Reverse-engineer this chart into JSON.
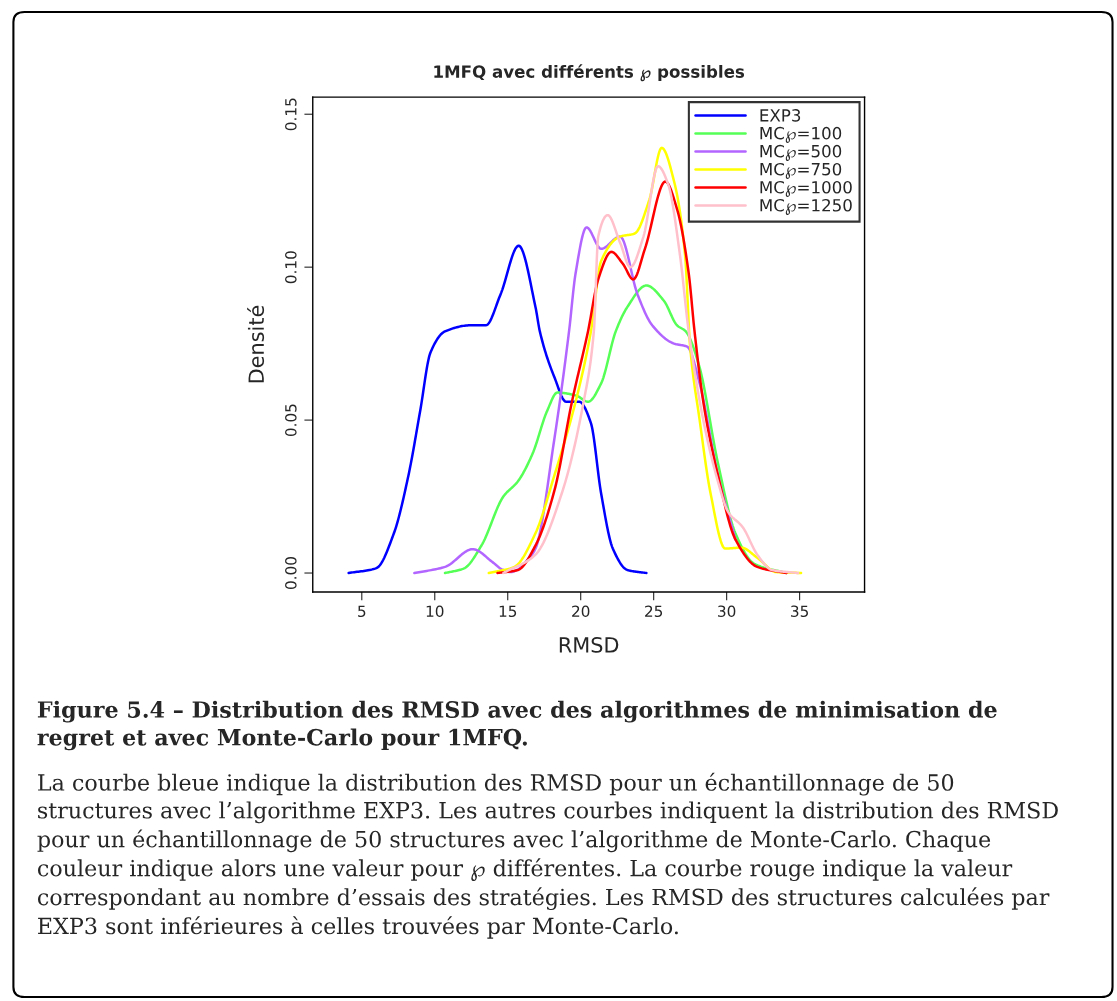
{
  "chart_data": {
    "type": "line",
    "title": "1MFQ avec différents ℘ possibles",
    "xlabel": "RMSD",
    "ylabel": "Densité",
    "xlim": [
      1.64,
      39.45
    ],
    "xticks": [
      5,
      10,
      15,
      20,
      25,
      30,
      35
    ],
    "ylim": [
      -0.0062,
      0.1556
    ],
    "yticks": [
      {
        "value": 0,
        "label": "0.00"
      },
      {
        "value": 0.05,
        "label": "0.05"
      },
      {
        "value": 0.1,
        "label": "0.10"
      },
      {
        "value": 0.15,
        "label": "0.15"
      }
    ],
    "grid": false,
    "legend": "top right",
    "marker": "none",
    "line_style": "solid",
    "series": [
      {
        "name": "EXP3",
        "color": "#0000ff",
        "x": [
          4.1,
          6.0,
          7.2,
          8.2,
          9.0,
          9.7,
          10.7,
          12.5,
          13.5,
          14.5,
          15.75,
          16.9,
          17.2,
          18.2,
          19.0,
          19.9,
          20.7,
          21.4,
          22.2,
          23.2,
          24.5
        ],
        "values": [
          0,
          0.0016,
          0.013,
          0.032,
          0.053,
          0.072,
          0.079,
          0.081,
          0.081,
          0.091,
          0.107,
          0.087,
          0.079,
          0.064,
          0.056,
          0.056,
          0.049,
          0.026,
          0.008,
          0.001,
          0
        ]
      },
      {
        "name": "MC℘=100",
        "color": "#55ff55",
        "x": [
          10.7,
          12.0,
          13.2,
          14.7,
          15.7,
          16.7,
          17.7,
          18.4,
          19.7,
          20.5,
          21.4,
          22.4,
          23.2,
          24.5,
          25.7,
          26.6,
          27.2,
          28.1,
          29.4,
          30.6,
          31.9,
          34.1
        ],
        "values": [
          0,
          0.0015,
          0.009,
          0.025,
          0.03,
          0.039,
          0.053,
          0.059,
          0.058,
          0.056,
          0.062,
          0.079,
          0.087,
          0.094,
          0.089,
          0.081,
          0.079,
          0.068,
          0.036,
          0.013,
          0.003,
          0
        ]
      },
      {
        "name": "MC℘=500",
        "color": "#b266ff",
        "x": [
          8.6,
          10.7,
          12.6,
          14.0,
          14.6,
          15.2,
          15.7,
          16.3,
          16.9,
          18.2,
          19.2,
          19.65,
          20.4,
          21.4,
          22.7,
          23.9,
          24.9,
          26.4,
          27.3,
          28.15,
          29.4,
          30.6
        ],
        "values": [
          0,
          0.002,
          0.0078,
          0.0034,
          0.0012,
          0.0003,
          0.0012,
          0.004,
          0.008,
          0.044,
          0.079,
          0.098,
          0.113,
          0.106,
          0.11,
          0.091,
          0.081,
          0.075,
          0.074,
          0.062,
          0.032,
          0.011
        ]
      },
      {
        "name": "MC℘=750",
        "color": "#ffff00",
        "x": [
          13.7,
          15.45,
          16.9,
          18.2,
          19.65,
          20.7,
          21.4,
          22.7,
          23.7,
          24.7,
          25.55,
          26.4,
          27.15,
          27.5,
          28.15,
          28.9,
          29.9,
          31.0,
          32.1,
          33.4,
          35.1
        ],
        "values": [
          0,
          0.002,
          0.013,
          0.032,
          0.056,
          0.079,
          0.102,
          0.11,
          0.111,
          0.122,
          0.139,
          0.128,
          0.104,
          0.074,
          0.05,
          0.026,
          0.008,
          0.0083,
          0.005,
          0.0003,
          0
        ]
      },
      {
        "name": "MC℘=1000",
        "color": "#ff0000",
        "x": [
          14.3,
          15.7,
          16.9,
          18.2,
          19.4,
          20.5,
          21.2,
          22.1,
          22.9,
          23.6,
          24.4,
          25.8,
          26.6,
          27.4,
          27.8,
          28.4,
          29.4,
          30.6,
          32.1,
          34.1
        ],
        "values": [
          0,
          0.001,
          0.009,
          0.027,
          0.056,
          0.079,
          0.096,
          0.105,
          0.101,
          0.096,
          0.106,
          0.128,
          0.119,
          0.098,
          0.079,
          0.056,
          0.032,
          0.011,
          0.002,
          0
        ]
      },
      {
        "name": "MC℘=1250",
        "color": "#ffc0cb",
        "x": [
          14.7,
          16.9,
          18.7,
          20.2,
          20.9,
          21.2,
          21.85,
          22.7,
          23.4,
          24.3,
          25.3,
          26.0,
          26.8,
          27.4,
          28.4,
          29.4,
          30.1,
          31.1,
          32.1,
          33.1,
          34.9
        ],
        "values": [
          0,
          0.006,
          0.026,
          0.056,
          0.079,
          0.11,
          0.117,
          0.108,
          0.1,
          0.11,
          0.133,
          0.127,
          0.104,
          0.079,
          0.05,
          0.03,
          0.02,
          0.015,
          0.006,
          0.001,
          0
        ]
      }
    ],
    "annotations": [
      "Figure 5.4 – Distribution des RMSD avec des algorithmes de minimisation de regret et avec Monte-Carlo pour 1MFQ.",
      "La courbe bleue indique la distribution des RMSD pour un échantillonnage de 50 structures avec l’algorithme EXP3. Les autres courbes indiquent la distribution des RMSD pour un échantillonnage de 50 structures avec l’algorithme de Monte-Carlo. Chaque couleur indique alors une valeur pour ℘ différentes. La courbe rouge indique la valeur correspondant au nombre d’essais des stratégies. Les RMSD des structures calculées par EXP3 sont inférieures à celles trouvées par Monte-Carlo."
    ]
  }
}
